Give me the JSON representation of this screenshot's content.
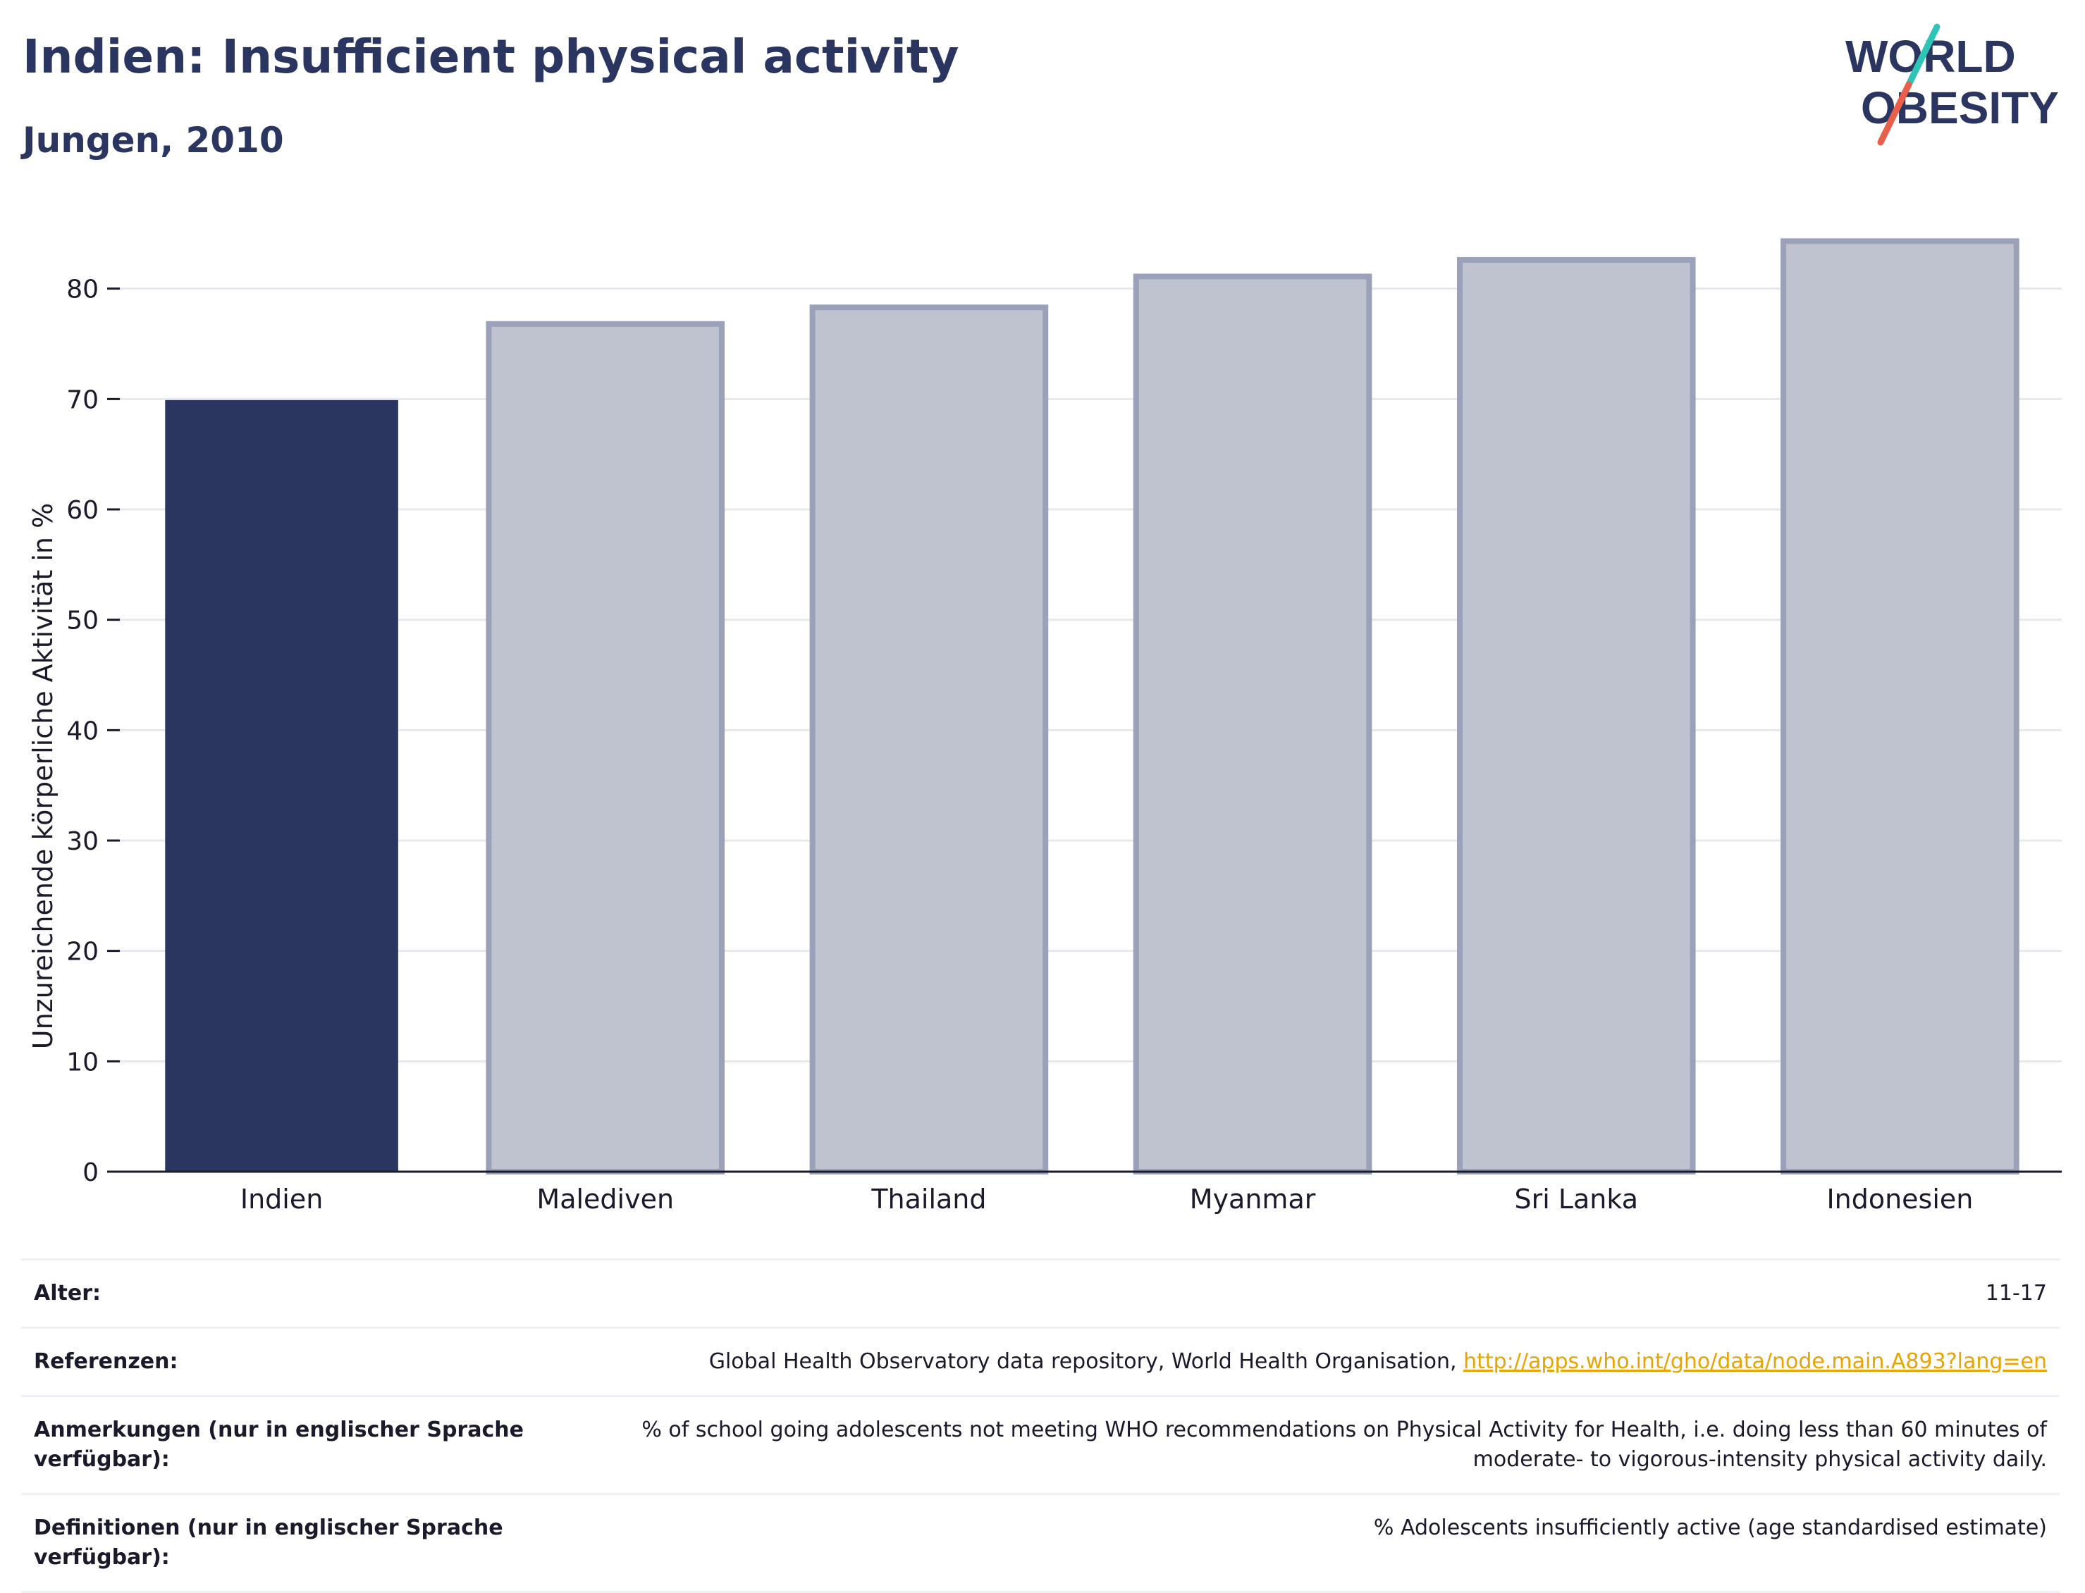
{
  "header": {
    "title": "Indien: Insufficient physical activity",
    "subtitle": "Jungen, 2010"
  },
  "logo": {
    "line1": "WORLD",
    "line2": "OBESITY",
    "colors": {
      "text": "#2b3660",
      "slash_top": "#2ec4b6",
      "slash_bottom": "#e8604c"
    }
  },
  "chart_data": {
    "type": "bar",
    "title": "Indien: Insufficient physical activity",
    "subtitle": "Jungen, 2010",
    "xlabel": "",
    "ylabel": "Unzureichende körperliche Aktivität in %",
    "categories": [
      "Indien",
      "Malediven",
      "Thailand",
      "Myanmar",
      "Sri Lanka",
      "Indonesien"
    ],
    "values": [
      69.9,
      76.8,
      78.3,
      81.1,
      82.6,
      84.3
    ],
    "highlight_index": 0,
    "ylim": [
      0,
      87
    ],
    "yticks": [
      0,
      10,
      20,
      30,
      40,
      50,
      60,
      70,
      80
    ],
    "grid": true,
    "legend": "none",
    "colors": {
      "highlight": "#2b3660",
      "other_fill": "#bfc3cf",
      "other_stroke": "#9aa1b8",
      "grid": "#e6e8ee",
      "axis": "#1a1a2a"
    }
  },
  "info": {
    "rows": [
      {
        "label": "Alter:",
        "value": "11-17"
      },
      {
        "label": "Referenzen:",
        "value": "Global Health Observatory data repository, World Health Organisation,",
        "link": "http://apps.who.int/gho/data/node.main.A893?lang=en"
      },
      {
        "label": "Anmerkungen (nur in englischer Sprache verfügbar):",
        "value": "% of school going adolescents not meeting WHO recommendations on Physical Activity for Health, i.e. doing less than 60 minutes of moderate- to vigorous-intensity physical activity daily."
      },
      {
        "label": "Definitionen (nur in englischer Sprache verfügbar):",
        "value": "% Adolescents insufficiently active (age standardised estimate)"
      }
    ]
  }
}
